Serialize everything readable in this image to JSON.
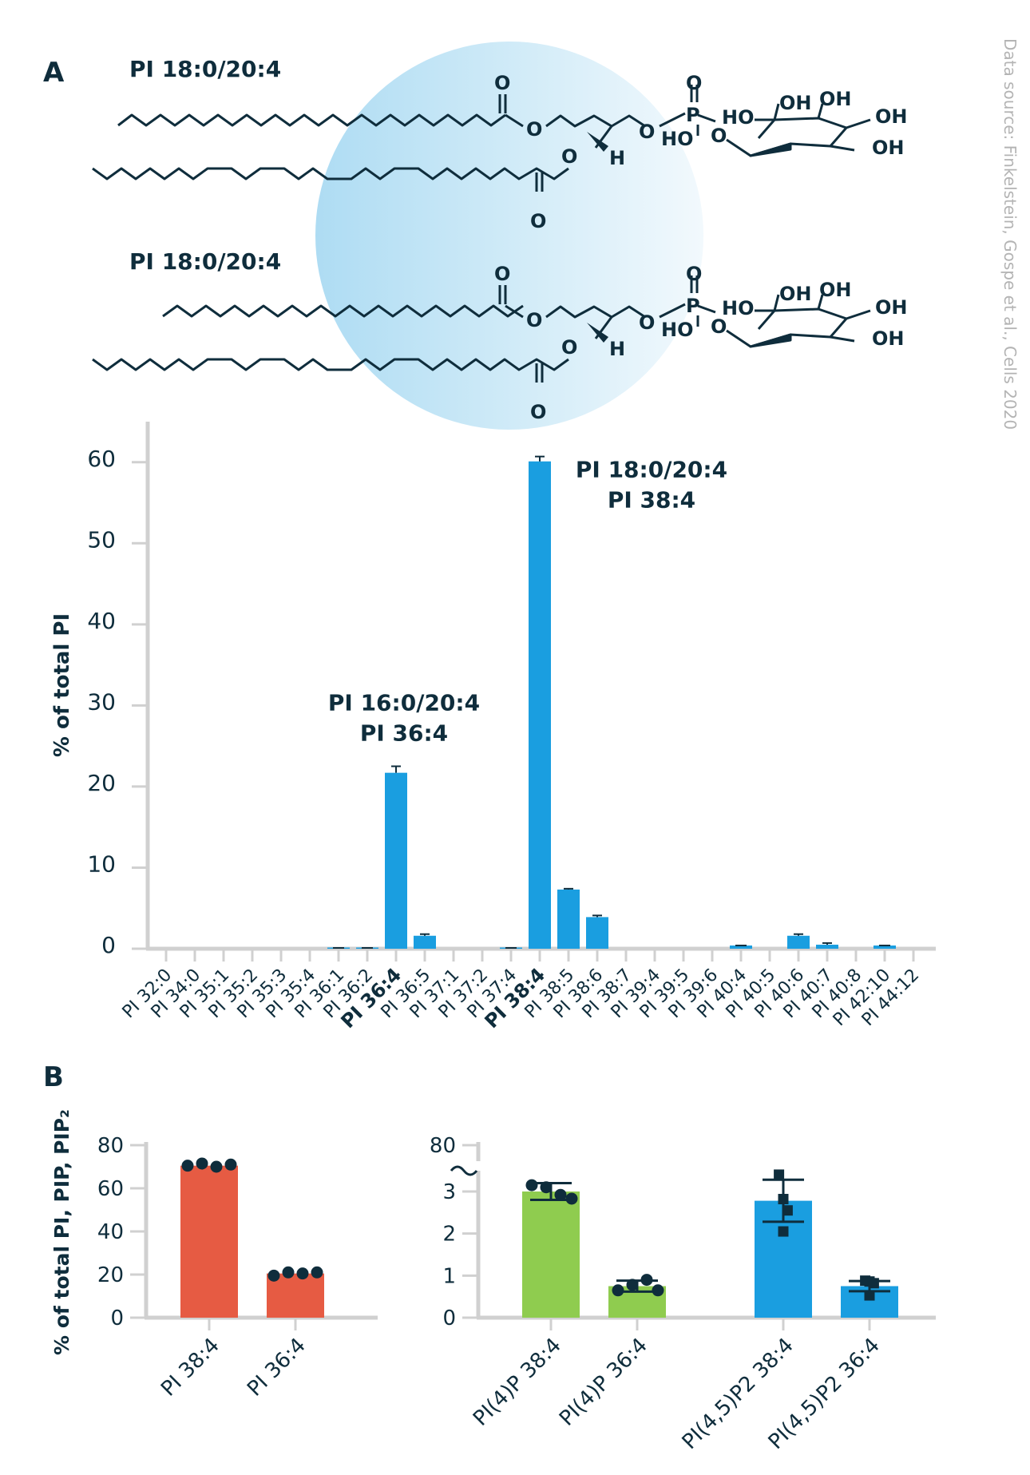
{
  "source_note": "Data source: Finkelstein, Gospe et al., Cells 2020",
  "panel_a": {
    "letter": "A",
    "structures": [
      {
        "title": "PI 18:0/20:4"
      },
      {
        "title": "PI 18:0/20:4"
      }
    ],
    "atoms": {
      "O": "O",
      "P": "P",
      "H": "H",
      "HO": "HO",
      "OH": "OH"
    }
  },
  "panel_b": {
    "letter": "B"
  },
  "colors": {
    "blue": "#1a9ee0",
    "red": "#e65b43",
    "green": "#8fcc4f",
    "axis": "#d0d0d0",
    "text": "#0f2d3c",
    "dot": "#0f2d3c"
  },
  "chart_data": [
    {
      "type": "bar",
      "ylabel": "% of total PI",
      "ylim": [
        0,
        65
      ],
      "yticks": [
        0,
        10,
        20,
        30,
        40,
        50,
        60
      ],
      "categories": [
        "PI 32:0",
        "PI 34:0",
        "PI 35:1",
        "PI 35:2",
        "PI 35:3",
        "PI 35:4",
        "PI 36:1",
        "PI 36:2",
        "PI 36:4",
        "PI 36:5",
        "PI 37:1",
        "PI 37:2",
        "PI 37:4",
        "PI 38:4",
        "PI 38:5",
        "PI 38:6",
        "PI 38:7",
        "PI 39:4",
        "PI 39:5",
        "PI 39:6",
        "PI 40:4",
        "PI 40:5",
        "PI 40:6",
        "PI 40:7",
        "PI 40:8",
        "PI 42:10",
        "PI 44:12"
      ],
      "bold_categories": [
        "PI 36:4",
        "PI 38:4"
      ],
      "values": [
        0,
        0,
        0,
        0,
        0,
        0,
        0.1,
        0.1,
        21.7,
        1.6,
        0,
        0,
        0.1,
        60.1,
        7.3,
        3.9,
        0,
        0,
        0,
        0,
        0.4,
        0,
        1.6,
        0.5,
        0,
        0.4,
        0
      ],
      "errors": [
        0,
        0,
        0,
        0,
        0,
        0,
        0,
        0,
        0.8,
        0.2,
        0,
        0,
        0,
        0.6,
        0.1,
        0.2,
        0,
        0,
        0,
        0,
        0,
        0,
        0.2,
        0.2,
        0,
        0,
        0
      ],
      "annotations": [
        {
          "category": "PI 36:4",
          "lines": [
            "PI 16:0/20:4",
            "PI 36:4"
          ]
        },
        {
          "category": "PI 38:4",
          "lines": [
            "PI 18:0/20:4",
            "PI 38:4"
          ]
        }
      ]
    },
    {
      "type": "bar",
      "ylabel": "% of total PI, PIP, PIP₂",
      "ylim": [
        0,
        80
      ],
      "yticks": [
        0,
        20,
        40,
        60,
        80
      ],
      "categories": [
        "PI 38:4",
        "PI 36:4"
      ],
      "values": [
        70.5,
        20.5
      ],
      "color": "red",
      "points": [
        [
          70.5,
          71.5,
          70,
          71
        ],
        [
          19.5,
          21,
          20.5,
          21
        ]
      ]
    },
    {
      "type": "bar",
      "ylim": [
        0,
        3.5
      ],
      "axis_break": true,
      "yticks": [
        0,
        1,
        2,
        3
      ],
      "ytick_top": "80",
      "categories": [
        "PI(4)P 38:4",
        "PI(4)P 36:4",
        "PI(4,5)P2 38:4",
        "PI(4,5)P2 36:4"
      ],
      "values": [
        3.0,
        0.75,
        2.78,
        0.75
      ],
      "errors": [
        0.2,
        0.13,
        0.5,
        0.12
      ],
      "colors": [
        "green",
        "green",
        "blue",
        "blue"
      ],
      "marker": [
        "circle",
        "circle",
        "square",
        "square"
      ],
      "points": [
        [
          3.15,
          3.1,
          2.92,
          2.83
        ],
        [
          0.65,
          0.78,
          0.9,
          0.65
        ],
        [
          3.4,
          2.82,
          2.55,
          2.05
        ],
        [
          0.88,
          0.86,
          0.82,
          0.53
        ]
      ]
    }
  ]
}
